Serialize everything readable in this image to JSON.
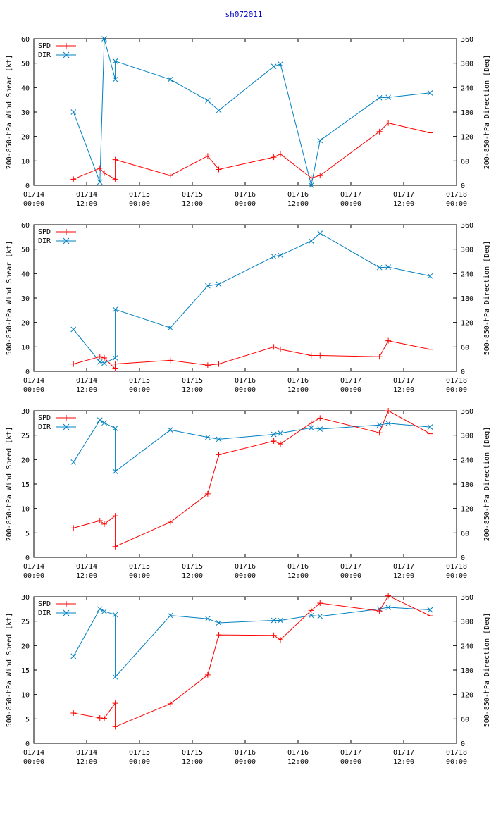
{
  "title": "sh072011",
  "colors": {
    "spd": "#ff0000",
    "dir": "#0080c0",
    "title": "#0000cc"
  },
  "x_axis": {
    "range_hours": [
      0,
      96
    ],
    "ticks": [
      {
        "h": 0,
        "line1": "01/14",
        "line2": "00:00"
      },
      {
        "h": 12,
        "line1": "01/14",
        "line2": "12:00"
      },
      {
        "h": 24,
        "line1": "01/15",
        "line2": "00:00"
      },
      {
        "h": 36,
        "line1": "01/15",
        "line2": "12:00"
      },
      {
        "h": 48,
        "line1": "01/16",
        "line2": "00:00"
      },
      {
        "h": 60,
        "line1": "01/16",
        "line2": "12:00"
      },
      {
        "h": 72,
        "line1": "01/17",
        "line2": "00:00"
      },
      {
        "h": 84,
        "line1": "01/17",
        "line2": "12:00"
      },
      {
        "h": 96,
        "line1": "01/18",
        "line2": "00:00"
      }
    ]
  },
  "legend": {
    "spd": "SPD",
    "dir": "DIR"
  },
  "chart_data": [
    {
      "type": "line",
      "name": "panel-200-850-shear",
      "ylabel_left": "200-850-hPa Wind Shear [kt]",
      "ylabel_right": "200-850-hPa Direction [Deg]",
      "ylim_left": [
        0,
        60
      ],
      "yticks_left": [
        0,
        10,
        20,
        30,
        40,
        50,
        60
      ],
      "ylim_right": [
        0,
        360
      ],
      "yticks_right": [
        0,
        60,
        120,
        180,
        240,
        300,
        360
      ],
      "series": [
        {
          "name": "SPD",
          "axis": "left",
          "x": [
            9,
            15,
            16,
            18.5,
            18.5,
            31,
            39.5,
            42,
            54.5,
            56,
            63,
            65,
            78.5,
            80.5,
            90
          ],
          "y": [
            2.5,
            7,
            5,
            2.5,
            10.5,
            4,
            12,
            6.5,
            11.5,
            12.8,
            3,
            4,
            22,
            25.5,
            21.5
          ]
        },
        {
          "name": "DIR",
          "axis": "right",
          "x": [
            9,
            15,
            16,
            18.5,
            18.5,
            31,
            39.5,
            42,
            54.5,
            56,
            63,
            65,
            78.5,
            80.5,
            90
          ],
          "y": [
            180,
            8,
            360,
            260,
            305,
            260,
            208,
            184,
            292,
            298,
            0,
            110,
            215,
            216,
            227
          ]
        }
      ]
    },
    {
      "type": "line",
      "name": "panel-500-850-shear",
      "ylabel_left": "500-850-hPa Wind Shear [kt]",
      "ylabel_right": "500-850-hPa Direction [Deg]",
      "ylim_left": [
        0,
        60
      ],
      "yticks_left": [
        0,
        10,
        20,
        30,
        40,
        50,
        60
      ],
      "ylim_right": [
        0,
        360
      ],
      "yticks_right": [
        0,
        60,
        120,
        180,
        240,
        300,
        360
      ],
      "series": [
        {
          "name": "SPD",
          "axis": "left",
          "x": [
            9,
            15,
            16,
            18.5,
            18.5,
            31,
            39.5,
            42,
            54.5,
            56,
            63,
            65,
            78.5,
            80.5,
            90
          ],
          "y": [
            3,
            6,
            5.5,
            1,
            3,
            4.5,
            2.5,
            3,
            10,
            9,
            6.5,
            6.5,
            6,
            12.5,
            9
          ]
        },
        {
          "name": "DIR",
          "axis": "right",
          "x": [
            9,
            15,
            16,
            18.5,
            18.5,
            31,
            39.5,
            42,
            54.5,
            56,
            63,
            65,
            78.5,
            80.5,
            90
          ],
          "y": [
            103,
            23,
            20,
            33,
            152,
            107,
            210,
            214,
            282,
            285,
            320,
            339,
            255,
            256,
            234
          ]
        }
      ]
    },
    {
      "type": "line",
      "name": "panel-200-850-speed",
      "ylabel_left": "200-850-hPa Wind Speed [kt]",
      "ylabel_right": "200-850-hPa Direction [Deg]",
      "ylim_left": [
        0,
        30
      ],
      "yticks_left": [
        0,
        5,
        10,
        15,
        20,
        25,
        30
      ],
      "ylim_right": [
        0,
        360
      ],
      "yticks_right": [
        0,
        60,
        120,
        180,
        240,
        300,
        360
      ],
      "series": [
        {
          "name": "SPD",
          "axis": "left",
          "x": [
            9,
            15,
            16,
            18.5,
            18.5,
            31,
            39.5,
            42,
            54.5,
            56,
            63,
            65,
            78.5,
            80.5,
            90
          ],
          "y": [
            6,
            7.5,
            6.8,
            8.5,
            2.2,
            7.2,
            13,
            21,
            23.8,
            23.2,
            27.5,
            28.5,
            25.5,
            30,
            25.3
          ]
        },
        {
          "name": "DIR",
          "axis": "right",
          "x": [
            9,
            15,
            16,
            18.5,
            18.5,
            31,
            39.5,
            42,
            54.5,
            56,
            63,
            65,
            78.5,
            80.5,
            90
          ],
          "y": [
            234,
            337,
            330,
            317,
            211,
            313,
            295,
            290,
            302,
            305,
            318,
            315,
            325,
            329,
            320
          ]
        }
      ]
    },
    {
      "type": "line",
      "name": "panel-500-850-speed",
      "ylabel_left": "500-850-hPa Wind Speed [kt]",
      "ylabel_right": "500-850-hPa Direction [Deg]",
      "ylim_left": [
        0,
        30
      ],
      "yticks_left": [
        0,
        5,
        10,
        15,
        20,
        25,
        30
      ],
      "ylim_right": [
        0,
        360
      ],
      "yticks_right": [
        0,
        60,
        120,
        180,
        240,
        300,
        360
      ],
      "series": [
        {
          "name": "SPD",
          "axis": "left",
          "x": [
            9,
            15,
            16,
            18.5,
            18.5,
            31,
            39.5,
            42,
            54.5,
            56,
            63,
            65,
            78.5,
            80.5,
            90
          ],
          "y": [
            6.2,
            5.2,
            5.1,
            8.2,
            3.4,
            8.1,
            14,
            22.2,
            22.1,
            21.2,
            27.2,
            28.7,
            27.1,
            30.2,
            26.1
          ]
        },
        {
          "name": "DIR",
          "axis": "right",
          "x": [
            9,
            15,
            16,
            18.5,
            18.5,
            31,
            39.5,
            42,
            54.5,
            56,
            63,
            65,
            78.5,
            80.5,
            90
          ],
          "y": [
            214,
            330,
            324,
            316,
            163,
            314,
            306,
            296,
            302,
            302,
            314,
            312,
            330,
            334,
            328
          ]
        }
      ]
    }
  ]
}
